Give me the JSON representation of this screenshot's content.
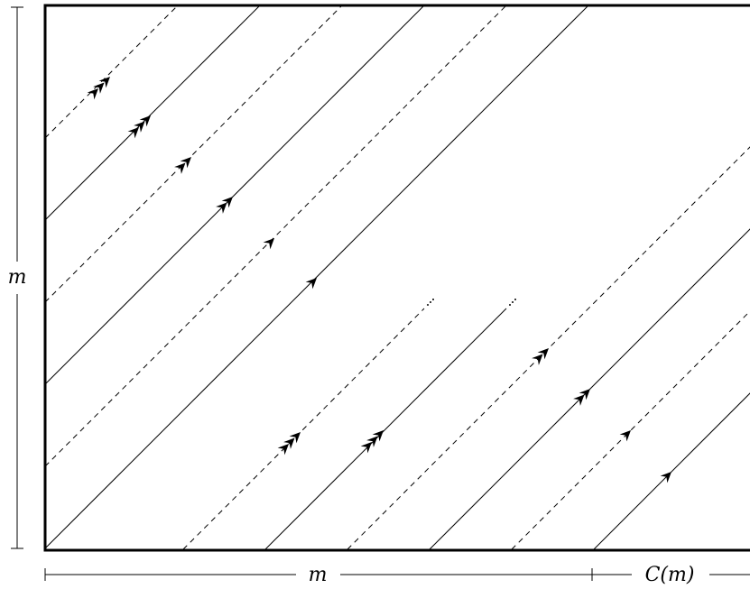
{
  "labels": {
    "left": "m",
    "bottom_main": "m",
    "bottom_extra": "C(m)"
  },
  "colors": {
    "stroke": "#000000",
    "background": "#ffffff"
  },
  "lines": [
    {
      "style": "dashed",
      "arrows": 3
    },
    {
      "style": "solid",
      "arrows": 3
    },
    {
      "style": "dashed",
      "arrows": 2
    },
    {
      "style": "solid",
      "arrows": 2
    },
    {
      "style": "dashed",
      "arrows": 1
    },
    {
      "style": "solid",
      "arrows": 1
    },
    {
      "style": "dashed",
      "arrows": 3,
      "truncated": true
    },
    {
      "style": "solid",
      "arrows": 3,
      "truncated": true
    },
    {
      "style": "dashed",
      "arrows": 2
    },
    {
      "style": "solid",
      "arrows": 2
    },
    {
      "style": "dashed",
      "arrows": 1
    },
    {
      "style": "solid",
      "arrows": 1
    }
  ]
}
